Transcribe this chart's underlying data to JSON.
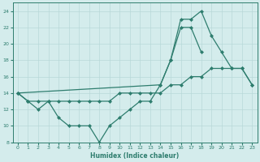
{
  "xlabel": "Humidex (Indice chaleur)",
  "x": [
    0,
    1,
    2,
    3,
    4,
    5,
    6,
    7,
    8,
    9,
    10,
    11,
    12,
    13,
    14,
    15,
    16,
    17,
    18,
    19,
    20,
    21,
    22,
    23
  ],
  "line1_y": [
    14,
    13,
    13,
    13,
    13,
    13,
    13,
    13,
    13,
    13,
    14,
    14,
    14,
    14,
    14,
    15,
    15,
    16,
    16,
    17,
    17,
    17,
    17,
    15
  ],
  "line2_x": [
    0,
    1,
    2,
    3,
    4,
    5,
    6,
    7,
    8,
    9,
    10,
    11,
    12,
    13,
    14,
    15,
    16,
    17,
    18
  ],
  "line2_y": [
    14,
    13,
    12,
    13,
    11,
    10,
    10,
    10,
    8,
    10,
    11,
    12,
    13,
    13,
    15,
    18,
    22,
    22,
    19
  ],
  "line3_x": [
    0,
    14,
    15,
    16,
    17,
    18,
    19,
    20,
    21,
    22,
    23
  ],
  "line3_y": [
    14,
    15,
    18,
    23,
    23,
    24,
    21,
    19,
    17,
    17,
    15
  ],
  "line_color": "#2e7d6e",
  "bg_color": "#d4ecec",
  "grid_color": "#b8d8d8",
  "ylim": [
    8,
    25
  ],
  "xlim": [
    -0.5,
    23.5
  ],
  "yticks": [
    8,
    10,
    12,
    14,
    16,
    18,
    20,
    22,
    24
  ],
  "xticks": [
    0,
    1,
    2,
    3,
    4,
    5,
    6,
    7,
    8,
    9,
    10,
    11,
    12,
    13,
    14,
    15,
    16,
    17,
    18,
    19,
    20,
    21,
    22,
    23
  ],
  "marker": "D",
  "markersize": 2,
  "linewidth": 0.9
}
